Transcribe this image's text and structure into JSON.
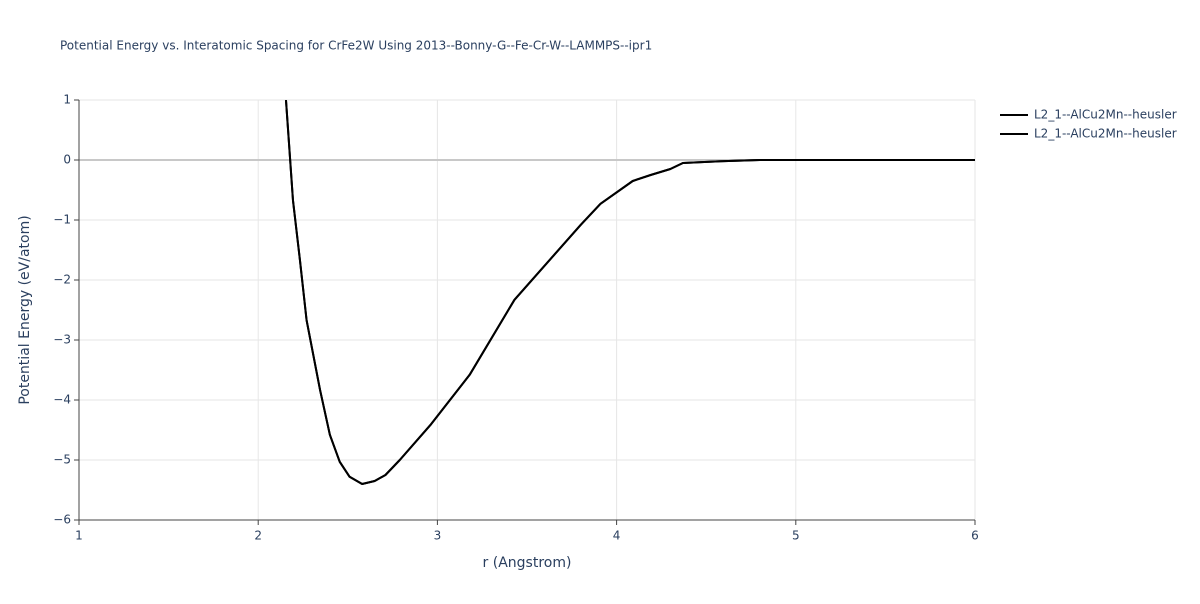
{
  "chart_data": {
    "type": "line",
    "title": "Potential Energy vs. Interatomic Spacing for CrFe2W Using 2013--Bonny-G--Fe-Cr-W--LAMMPS--ipr1",
    "x_label": "r (Angstrom)",
    "y_label": "Potential Energy (eV/atom)",
    "x": [
      2.155,
      2.194,
      2.233,
      2.27,
      2.345,
      2.4,
      2.455,
      2.51,
      2.58,
      2.65,
      2.71,
      2.79,
      2.96,
      3.18,
      3.43,
      3.8,
      3.91,
      4.09,
      4.19,
      4.3,
      4.37,
      4.58,
      4.8,
      5.2,
      6
    ],
    "series": [
      {
        "name": "L2_1--AlCu2Mn--heusler",
        "color": "#000000",
        "values": [
          1.0,
          -0.67,
          -1.67,
          -2.67,
          -3.83,
          -4.58,
          -5.03,
          -5.28,
          -5.4,
          -5.35,
          -5.25,
          -5.0,
          -4.42,
          -3.58,
          -2.33,
          -1.08,
          -0.73,
          -0.35,
          -0.25,
          -0.15,
          -0.05,
          -0.02,
          0,
          0,
          0
        ]
      },
      {
        "name": "L2_1--AlCu2Mn--heusler",
        "color": "#000000",
        "values": [
          1.0,
          -0.67,
          -1.67,
          -2.67,
          -3.83,
          -4.58,
          -5.03,
          -5.28,
          -5.4,
          -5.35,
          -5.25,
          -5.0,
          -4.42,
          -3.58,
          -2.33,
          -1.08,
          -0.73,
          -0.35,
          -0.25,
          -0.15,
          -0.05,
          -0.02,
          0,
          0,
          0
        ]
      }
    ],
    "xlim": [
      1,
      6
    ],
    "xticks": [
      1,
      2,
      3,
      4,
      5,
      6
    ],
    "ylim": [
      -6,
      1
    ],
    "yticks": [
      {
        "value": -6,
        "label": "−6"
      },
      {
        "value": -5,
        "label": "−5"
      },
      {
        "value": -4,
        "label": "−4"
      },
      {
        "value": -3,
        "label": "−3"
      },
      {
        "value": -2,
        "label": "−2"
      },
      {
        "value": -1,
        "label": "−1"
      },
      0,
      1
    ],
    "grid": true
  }
}
